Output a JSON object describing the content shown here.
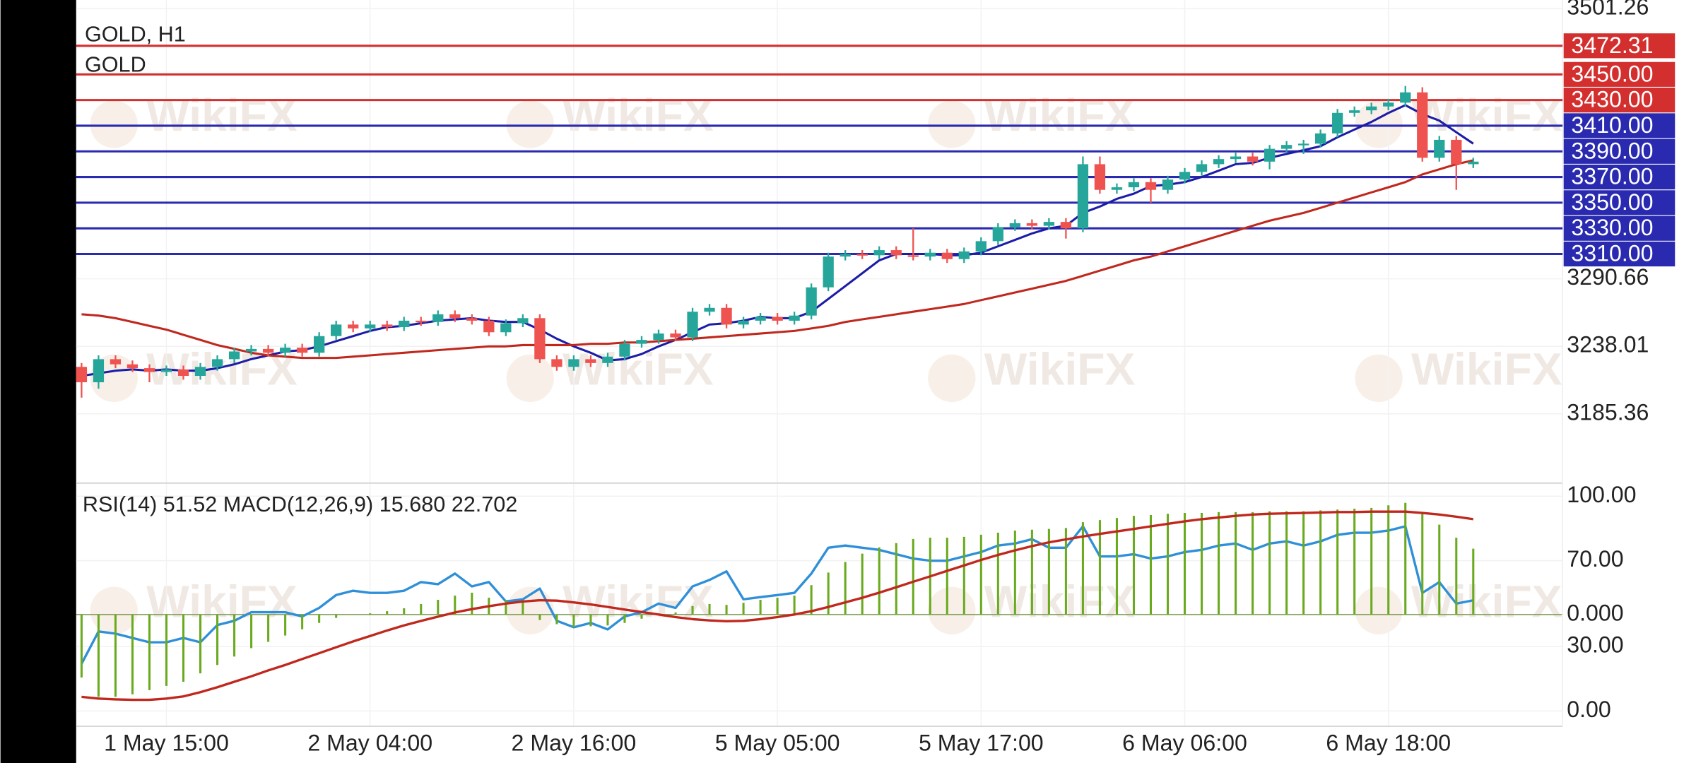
{
  "chart_data": [
    {
      "type": "candlestick",
      "title": "GOLD, H1",
      "subtitle": "GOLD",
      "watermark": "WikiFX",
      "categories": [
        null,
        null,
        null,
        null,
        null,
        "1 May 15:00",
        null,
        null,
        null,
        null,
        null,
        null,
        null,
        null,
        null,
        null,
        null,
        "2 May 04:00",
        null,
        null,
        null,
        null,
        null,
        null,
        null,
        null,
        null,
        null,
        null,
        "2 May 16:00",
        null,
        null,
        null,
        null,
        null,
        null,
        null,
        null,
        null,
        null,
        null,
        "5 May 05:00",
        null,
        null,
        null,
        null,
        null,
        null,
        null,
        null,
        null,
        null,
        null,
        "5 May 17:00",
        null,
        null,
        null,
        null,
        null,
        null,
        null,
        null,
        null,
        null,
        null,
        "6 May 06:00",
        null,
        null,
        null,
        null,
        null,
        null,
        null,
        null,
        null,
        null,
        null,
        "6 May 18:00",
        null,
        null,
        null,
        null,
        null
      ],
      "open": [
        3222,
        3210,
        3228,
        3224,
        3221,
        3218,
        3220,
        3215,
        3222,
        3228,
        3234,
        3236,
        3233,
        3237,
        3233,
        3246,
        3255,
        3252,
        3255,
        3253,
        3258,
        3257,
        3263,
        3260,
        3258,
        3249,
        3256,
        3260,
        3228,
        3222,
        3228,
        3225,
        3230,
        3240,
        3243,
        3248,
        3245,
        3265,
        3268,
        3255,
        3258,
        3261,
        3258,
        3262,
        3284,
        3308,
        3310,
        3309,
        3313,
        3309,
        3308,
        3311,
        3306,
        3312,
        3320,
        3331,
        3334,
        3332,
        3335,
        3330,
        3380,
        3360,
        3362,
        3366,
        3360,
        3368,
        3374,
        3380,
        3384,
        3386,
        3382,
        3392,
        3395,
        3396,
        3404,
        3420,
        3422,
        3425,
        3428,
        3436,
        3385,
        3399,
        3380
      ],
      "high": [
        3225,
        3231,
        3231,
        3227,
        3224,
        3223,
        3223,
        3225,
        3231,
        3237,
        3239,
        3239,
        3240,
        3240,
        3249,
        3258,
        3258,
        3258,
        3258,
        3261,
        3261,
        3266,
        3266,
        3263,
        3261,
        3259,
        3263,
        3263,
        3231,
        3231,
        3231,
        3233,
        3243,
        3246,
        3251,
        3251,
        3268,
        3271,
        3271,
        3261,
        3264,
        3264,
        3265,
        3287,
        3311,
        3313,
        3313,
        3316,
        3316,
        3330,
        3314,
        3314,
        3315,
        3323,
        3334,
        3337,
        3337,
        3338,
        3338,
        3386,
        3386,
        3365,
        3369,
        3369,
        3371,
        3377,
        3383,
        3387,
        3389,
        3389,
        3395,
        3398,
        3399,
        3407,
        3423,
        3425,
        3428,
        3431,
        3441,
        3440,
        3402,
        3402,
        3385
      ],
      "low": [
        3198,
        3205,
        3221,
        3218,
        3210,
        3215,
        3212,
        3212,
        3219,
        3225,
        3231,
        3230,
        3230,
        3230,
        3230,
        3243,
        3249,
        3249,
        3250,
        3250,
        3254,
        3254,
        3257,
        3255,
        3246,
        3246,
        3253,
        3225,
        3219,
        3219,
        3222,
        3222,
        3227,
        3237,
        3240,
        3242,
        3242,
        3262,
        3252,
        3252,
        3255,
        3255,
        3255,
        3259,
        3281,
        3305,
        3306,
        3306,
        3306,
        3305,
        3305,
        3303,
        3303,
        3309,
        3317,
        3328,
        3329,
        3329,
        3322,
        3327,
        3357,
        3357,
        3359,
        3350,
        3357,
        3365,
        3371,
        3377,
        3381,
        3379,
        3376,
        3389,
        3388,
        3393,
        3401,
        3417,
        3419,
        3422,
        3425,
        3382,
        3382,
        3360,
        3377
      ],
      "close": [
        3210,
        3228,
        3224,
        3221,
        3218,
        3220,
        3215,
        3222,
        3228,
        3234,
        3236,
        3233,
        3237,
        3233,
        3246,
        3255,
        3252,
        3255,
        3253,
        3258,
        3257,
        3263,
        3260,
        3258,
        3249,
        3256,
        3260,
        3228,
        3222,
        3228,
        3225,
        3230,
        3240,
        3243,
        3248,
        3245,
        3265,
        3268,
        3255,
        3258,
        3261,
        3258,
        3262,
        3284,
        3308,
        3310,
        3309,
        3313,
        3309,
        3308,
        3311,
        3306,
        3312,
        3320,
        3331,
        3334,
        3332,
        3335,
        3330,
        3380,
        3360,
        3362,
        3366,
        3360,
        3368,
        3374,
        3380,
        3384,
        3386,
        3382,
        3392,
        3395,
        3396,
        3404,
        3420,
        3422,
        3425,
        3428,
        3436,
        3385,
        3399,
        3380,
        3382
      ],
      "up_color": "#26a69a",
      "down_color": "#ef5350",
      "lines": [
        {
          "color": "#1c1ca8",
          "values": [
            3215,
            3217,
            3219,
            3220,
            3219,
            3220,
            3219,
            3219,
            3221,
            3224,
            3228,
            3231,
            3234,
            3235,
            3238,
            3242,
            3246,
            3250,
            3253,
            3254,
            3256,
            3258,
            3259,
            3260,
            3258,
            3257,
            3257,
            3251,
            3244,
            3238,
            3233,
            3227,
            3228,
            3232,
            3238,
            3243,
            3249,
            3255,
            3256,
            3258,
            3261,
            3260,
            3260,
            3265,
            3275,
            3285,
            3295,
            3305,
            3310,
            3310,
            3310,
            3309,
            3309,
            3311,
            3316,
            3321,
            3326,
            3330,
            3332,
            3342,
            3347,
            3353,
            3357,
            3363,
            3364,
            3366,
            3370,
            3375,
            3380,
            3381,
            3385,
            3388,
            3391,
            3394,
            3401,
            3407,
            3413,
            3420,
            3426,
            3419,
            3414,
            3405,
            3396
          ]
        },
        {
          "color": "#c0281e",
          "values": [
            3263,
            3262,
            3260,
            3257,
            3254,
            3251,
            3247,
            3243,
            3239,
            3236,
            3233,
            3231,
            3230,
            3229,
            3229,
            3229,
            3230,
            3231,
            3232,
            3233,
            3234,
            3235,
            3236,
            3237,
            3238,
            3238,
            3239,
            3239,
            3239,
            3239,
            3240,
            3240,
            3241,
            3241,
            3242,
            3243,
            3244,
            3245,
            3246,
            3247,
            3248,
            3249,
            3250,
            3252,
            3254,
            3257,
            3259,
            3261,
            3263,
            3265,
            3267,
            3269,
            3271,
            3274,
            3277,
            3280,
            3283,
            3286,
            3289,
            3293,
            3297,
            3301,
            3305,
            3308,
            3312,
            3316,
            3320,
            3324,
            3328,
            3332,
            3336,
            3339,
            3342,
            3346,
            3350,
            3354,
            3358,
            3362,
            3366,
            3372,
            3376,
            3380,
            3383
          ]
        }
      ],
      "levels": [
        3472.31,
        {
          "value": 3450,
          "label": "3450.00"
        },
        {
          "value": 3430,
          "label": "3430.00"
        },
        {
          "value": 3410,
          "label": "3410.00"
        },
        {
          "value": 3390,
          "label": "3390.00"
        },
        {
          "value": 3370,
          "label": "3370.00"
        },
        {
          "value": 3350,
          "label": "3350.00"
        },
        {
          "value": 3330,
          "label": "3330.00"
        },
        {
          "value": 3310,
          "label": "3310.00"
        }
      ],
      "level_colors": [
        "#d32f2f",
        "#d32f2f",
        "#d32f2f",
        "#2a2ab0",
        "#2a2ab0",
        "#2a2ab0",
        "#2a2ab0",
        "#2a2ab0",
        "#2a2ab0"
      ],
      "ylim": [
        3131.4,
        3508.0
      ],
      "yticks": [
        3501.26,
        3290.66,
        3238.01,
        3185.36
      ],
      "grid": true
    },
    {
      "type": "indicator",
      "legend": "RSI(14) 51.52 MACD(12,26,9) 15.680 22.702",
      "series": [
        {
          "style": "line",
          "color": "#2f8fd8",
          "values": [
            22,
            37,
            36,
            34,
            32,
            32,
            34,
            32,
            40,
            42,
            46,
            46,
            46,
            44,
            48,
            54,
            56,
            55,
            55,
            56,
            60,
            59,
            64,
            58,
            60,
            51,
            52,
            57,
            42,
            39,
            41,
            38,
            44,
            46,
            50,
            48,
            58,
            61,
            65,
            52,
            53,
            54,
            55,
            64,
            76,
            77,
            76,
            75,
            73,
            71,
            70,
            70,
            72,
            74,
            77,
            78,
            80,
            76,
            76,
            86,
            72,
            72,
            73,
            71,
            72,
            74,
            75,
            77,
            78,
            75,
            78,
            79,
            77,
            79,
            82,
            83,
            83,
            84,
            86,
            55,
            60,
            50,
            51.52
          ]
        },
        {
          "style": "histogram",
          "axis": "y2",
          "color": "#6aaa1e",
          "values": [
            -15,
            -19.6,
            -19.6,
            -19,
            -18,
            -17,
            -16,
            -14,
            -12,
            -10,
            -8,
            -6.5,
            -5,
            -3.5,
            -2,
            -0.8,
            0,
            0.3,
            0.8,
            1.5,
            2.5,
            3.5,
            4.5,
            5.2,
            4,
            3.5,
            3,
            -1.3,
            -2.3,
            -3,
            -2.8,
            -2.6,
            -2,
            -1,
            0,
            0.5,
            2,
            2.5,
            2.3,
            2.8,
            3.5,
            4,
            4.5,
            7,
            10,
            12.5,
            14.5,
            16,
            17,
            18,
            18.3,
            18.3,
            18.5,
            19,
            19.5,
            20,
            20.2,
            20.4,
            20.6,
            22,
            22.5,
            23,
            23.5,
            23.7,
            24,
            24.2,
            24.2,
            24.4,
            24.4,
            24.4,
            24.6,
            24.6,
            24.6,
            24.8,
            25,
            25.2,
            25.4,
            26,
            26.6,
            24,
            21.4,
            18.3,
            15.68
          ]
        },
        {
          "style": "line",
          "axis": "y2",
          "color": "#c0281e",
          "values": [
            -19.6,
            -20,
            -20.2,
            -20.3,
            -20.3,
            -20,
            -19.5,
            -18.5,
            -17.3,
            -16,
            -14.7,
            -13.3,
            -12,
            -10.6,
            -9.2,
            -7.8,
            -6.4,
            -5.1,
            -3.8,
            -2.6,
            -1.5,
            -0.5,
            0.5,
            1.3,
            2,
            2.6,
            3.1,
            3.4,
            3.3,
            2.9,
            2.4,
            1.8,
            1.2,
            0.6,
            0,
            -0.6,
            -1.1,
            -1.4,
            -1.6,
            -1.5,
            -1.1,
            -0.6,
            0,
            0.8,
            1.8,
            2.9,
            4,
            5.2,
            6.5,
            7.8,
            9.1,
            10.4,
            11.7,
            13,
            14.2,
            15.3,
            16.3,
            17.2,
            17.9,
            18.6,
            19.2,
            19.8,
            20.4,
            21,
            21.6,
            22.2,
            22.7,
            23.1,
            23.5,
            23.8,
            24,
            24.1,
            24.2,
            24.3,
            24.4,
            24.4,
            24.5,
            24.5,
            24.5,
            24.2,
            23.8,
            23.3,
            22.702
          ]
        }
      ],
      "ylim": [
        -7.1,
        106.1
      ],
      "yticks": [
        {
          "value": 100,
          "label": "100.00"
        },
        {
          "value": 70,
          "label": "70.00"
        },
        {
          "value": 30,
          "label": "30.00"
        },
        {
          "value": 0,
          "label": "0.00"
        }
      ],
      "y2lim": [
        -26.6,
        31.3
      ],
      "y2ticks": [
        {
          "value": 0,
          "label": "0.000"
        }
      ]
    }
  ]
}
